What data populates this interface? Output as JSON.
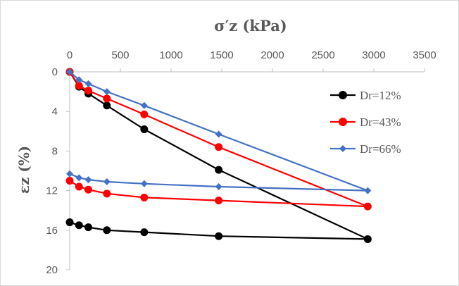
{
  "chart_data": {
    "type": "line",
    "title": "σ′z (kPa)",
    "xlabel": "σ′z (kPa)",
    "ylabel": "εz (%)",
    "xlim": [
      0,
      3500
    ],
    "ylim": [
      0,
      20
    ],
    "x_axis_position": "top",
    "y_inverted": true,
    "x_ticks": [
      "0",
      "500",
      "1000",
      "1500",
      "2000",
      "2500",
      "3000",
      "3500"
    ],
    "y_ticks": [
      "0",
      "4",
      "8",
      "12",
      "16",
      "20"
    ],
    "grid": false,
    "legend_position": "right",
    "series": [
      {
        "name": "Dr=12%",
        "color": "#000000",
        "marker": "circle",
        "x": [
          0,
          92,
          184,
          367,
          735,
          1470,
          2940,
          1470,
          735,
          367,
          184,
          92,
          0
        ],
        "y": [
          0,
          1.5,
          2.2,
          3.4,
          5.8,
          9.9,
          16.9,
          16.6,
          16.2,
          16.0,
          15.7,
          15.5,
          15.2
        ]
      },
      {
        "name": "Dr=43%",
        "color": "#ff0000",
        "marker": "circle",
        "x": [
          0,
          92,
          184,
          367,
          735,
          1470,
          2940,
          1470,
          735,
          367,
          184,
          92,
          0
        ],
        "y": [
          0,
          1.4,
          1.9,
          2.7,
          4.3,
          7.6,
          13.6,
          13.0,
          12.7,
          12.3,
          11.9,
          11.6,
          11.0
        ]
      },
      {
        "name": "Dr=66%",
        "color": "#4472c4",
        "marker": "diamond",
        "x": [
          0,
          92,
          184,
          367,
          735,
          1470,
          2940,
          1470,
          735,
          367,
          184,
          92,
          0
        ],
        "y": [
          0,
          0.8,
          1.2,
          2.0,
          3.4,
          6.3,
          12.0,
          11.6,
          11.3,
          11.1,
          10.9,
          10.7,
          10.3
        ]
      }
    ]
  }
}
